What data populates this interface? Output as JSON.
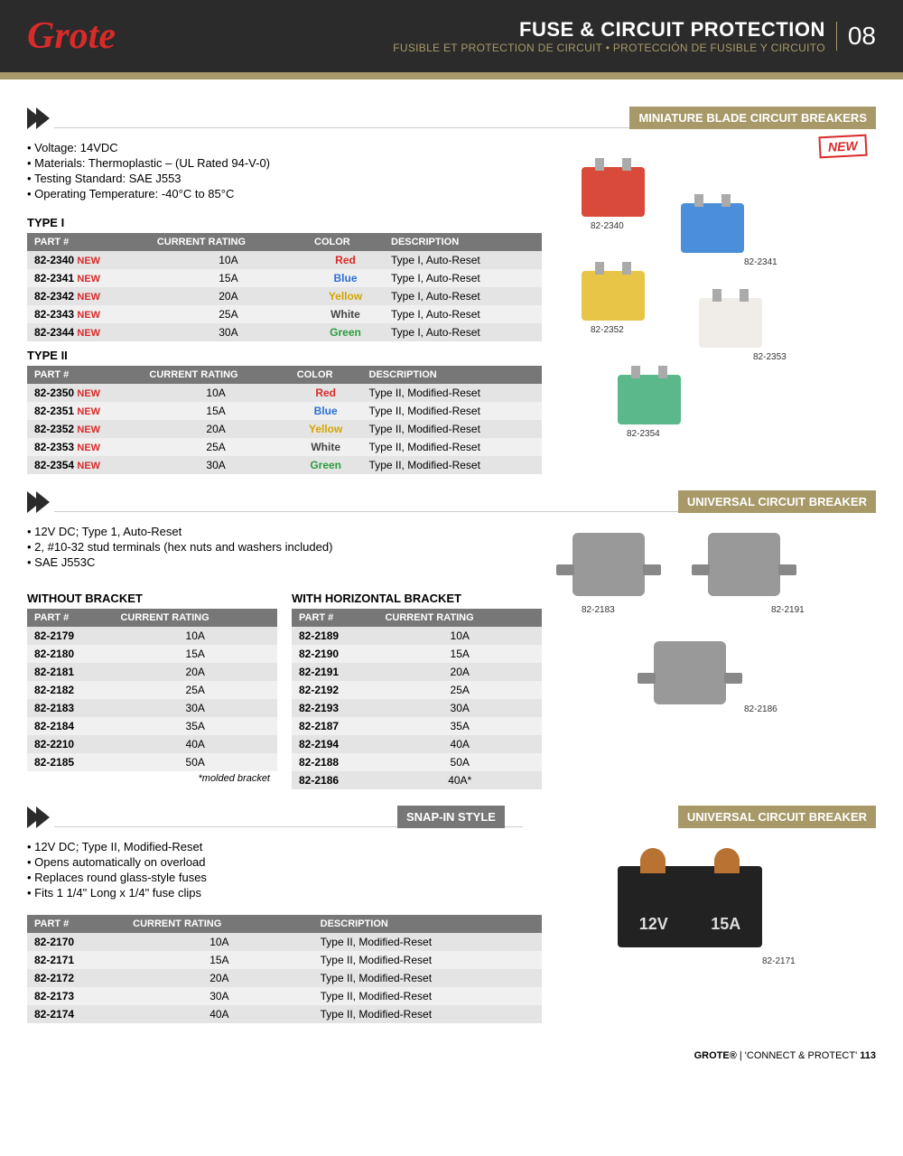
{
  "header": {
    "logo": "Grote",
    "title": "FUSE & CIRCUIT PROTECTION",
    "subtitle": "FUSIBLE ET PROTECTION DE CIRCUIT • PROTECCIÓN DE FUSIBLE Y CIRCUITO",
    "section_num": "08"
  },
  "sec1": {
    "title": "MINIATURE BLADE CIRCUIT BREAKERS",
    "bullets": [
      "Voltage: 14VDC",
      "Materials: Thermoplastic – (UL Rated 94-V-0)",
      "Testing Standard: SAE J553",
      "Operating Temperature: -40°C to 85°C"
    ],
    "t1_title": "TYPE I",
    "t2_title": "TYPE II",
    "headers": [
      "PART #",
      "CURRENT RATING",
      "COLOR",
      "DESCRIPTION"
    ],
    "t1_rows": [
      {
        "part": "82-2340",
        "new": "NEW",
        "rating": "10A",
        "color": "Red",
        "cclass": "c-red",
        "desc": "Type I, Auto-Reset"
      },
      {
        "part": "82-2341",
        "new": "NEW",
        "rating": "15A",
        "color": "Blue",
        "cclass": "c-blue",
        "desc": "Type I, Auto-Reset"
      },
      {
        "part": "82-2342",
        "new": "NEW",
        "rating": "20A",
        "color": "Yellow",
        "cclass": "c-yellow",
        "desc": "Type I, Auto-Reset"
      },
      {
        "part": "82-2343",
        "new": "NEW",
        "rating": "25A",
        "color": "White",
        "cclass": "c-white",
        "desc": "Type I, Auto-Reset"
      },
      {
        "part": "82-2344",
        "new": "NEW",
        "rating": "30A",
        "color": "Green",
        "cclass": "c-green",
        "desc": "Type I, Auto-Reset"
      }
    ],
    "t2_rows": [
      {
        "part": "82-2350",
        "new": "NEW",
        "rating": "10A",
        "color": "Red",
        "cclass": "c-red",
        "desc": "Type II, Modified-Reset"
      },
      {
        "part": "82-2351",
        "new": "NEW",
        "rating": "15A",
        "color": "Blue",
        "cclass": "c-blue",
        "desc": "Type II, Modified-Reset"
      },
      {
        "part": "82-2352",
        "new": "NEW",
        "rating": "20A",
        "color": "Yellow",
        "cclass": "c-yellow",
        "desc": "Type II, Modified-Reset"
      },
      {
        "part": "82-2353",
        "new": "NEW",
        "rating": "25A",
        "color": "White",
        "cclass": "c-white",
        "desc": "Type II, Modified-Reset"
      },
      {
        "part": "82-2354",
        "new": "NEW",
        "rating": "30A",
        "color": "Green",
        "cclass": "c-green",
        "desc": "Type II, Modified-Reset"
      }
    ],
    "new_badge": "NEW",
    "img_labels": [
      "82-2340",
      "82-2341",
      "82-2352",
      "82-2353",
      "82-2354"
    ],
    "breaker_colors": {
      "red": "#d94a3a",
      "blue": "#4a8fd9",
      "yellow": "#e8c547",
      "white": "#f0ede8",
      "green": "#5ab88a"
    }
  },
  "sec2": {
    "title": "UNIVERSAL CIRCUIT BREAKER",
    "bullets": [
      "12V DC; Type 1, Auto-Reset",
      "2, #10-32 stud terminals (hex nuts and washers included)",
      "SAE J553C"
    ],
    "ta_title": "WITHOUT BRACKET",
    "tb_title": "WITH HORIZONTAL BRACKET",
    "headers": [
      "PART #",
      "CURRENT RATING"
    ],
    "ta_rows": [
      {
        "part": "82-2179",
        "rating": "10A"
      },
      {
        "part": "82-2180",
        "rating": "15A"
      },
      {
        "part": "82-2181",
        "rating": "20A"
      },
      {
        "part": "82-2182",
        "rating": "25A"
      },
      {
        "part": "82-2183",
        "rating": "30A"
      },
      {
        "part": "82-2184",
        "rating": "35A"
      },
      {
        "part": "82-2210",
        "rating": "40A"
      },
      {
        "part": "82-2185",
        "rating": "50A"
      }
    ],
    "tb_rows": [
      {
        "part": "82-2189",
        "rating": "10A"
      },
      {
        "part": "82-2190",
        "rating": "15A"
      },
      {
        "part": "82-2191",
        "rating": "20A"
      },
      {
        "part": "82-2192",
        "rating": "25A"
      },
      {
        "part": "82-2193",
        "rating": "30A"
      },
      {
        "part": "82-2187",
        "rating": "35A"
      },
      {
        "part": "82-2194",
        "rating": "40A"
      },
      {
        "part": "82-2188",
        "rating": "50A"
      },
      {
        "part": "82-2186",
        "rating": "40A*"
      }
    ],
    "note": "*molded bracket",
    "img_labels": [
      "82-2183",
      "82-2191",
      "82-2186"
    ]
  },
  "sec3": {
    "title_left": "SNAP-IN STYLE",
    "title_right": "UNIVERSAL CIRCUIT BREAKER",
    "bullets": [
      "12V DC; Type II, Modified-Reset",
      "Opens automatically on overload",
      "Replaces round glass-style fuses",
      "Fits 1 1/4\" Long x 1/4\" fuse clips"
    ],
    "headers": [
      "PART #",
      "CURRENT RATING",
      "DESCRIPTION"
    ],
    "rows": [
      {
        "part": "82-2170",
        "rating": "10A",
        "desc": "Type II, Modified-Reset"
      },
      {
        "part": "82-2171",
        "rating": "15A",
        "desc": "Type II, Modified-Reset"
      },
      {
        "part": "82-2172",
        "rating": "20A",
        "desc": "Type II, Modified-Reset"
      },
      {
        "part": "82-2173",
        "rating": "30A",
        "desc": "Type II, Modified-Reset"
      },
      {
        "part": "82-2174",
        "rating": "40A",
        "desc": "Type II, Modified-Reset"
      }
    ],
    "img_label": "82-2171",
    "snap_text": {
      "v": "12V",
      "a": "15A"
    }
  },
  "footer": {
    "brand": "GROTE®",
    "sep": " | ",
    "tag": "'CONNECT & PROTECT'",
    "page": "113"
  }
}
